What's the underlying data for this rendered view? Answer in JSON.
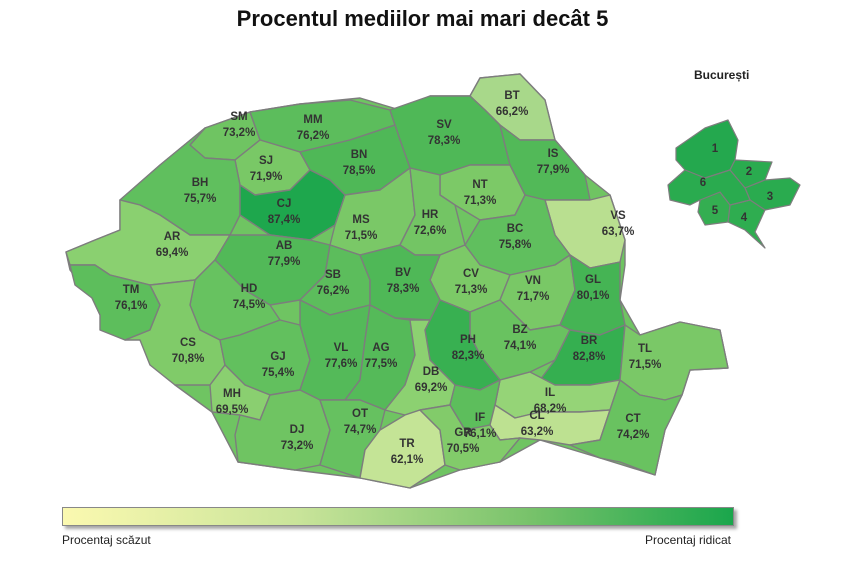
{
  "title": "Procentul mediilor mai mari decât 5",
  "inset_title": "București",
  "legend": {
    "low": "Procentaj scăzut",
    "high": "Procentaj ridicat",
    "colors": [
      "#fbf9b0",
      "#c9e49a",
      "#77c26a",
      "#1aa64c"
    ]
  },
  "counties": [
    {
      "code": "SM",
      "value": "73,2%",
      "fill": "#6fc462"
    },
    {
      "code": "MM",
      "value": "76,2%",
      "fill": "#5cbd5c"
    },
    {
      "code": "BT",
      "value": "66,2%",
      "fill": "#a8d88a"
    },
    {
      "code": "SV",
      "value": "78,3%",
      "fill": "#4fb857"
    },
    {
      "code": "SJ",
      "value": "71,9%",
      "fill": "#79c866"
    },
    {
      "code": "BN",
      "value": "78,5%",
      "fill": "#4fb857"
    },
    {
      "code": "IS",
      "value": "77,9%",
      "fill": "#52b958"
    },
    {
      "code": "BH",
      "value": "75,7%",
      "fill": "#60bf5e"
    },
    {
      "code": "CJ",
      "value": "87,4%",
      "fill": "#1ea74d"
    },
    {
      "code": "NT",
      "value": "71,3%",
      "fill": "#7cc967"
    },
    {
      "code": "MS",
      "value": "71,5%",
      "fill": "#7ac867"
    },
    {
      "code": "HR",
      "value": "72,6%",
      "fill": "#73c564"
    },
    {
      "code": "VS",
      "value": "63,7%",
      "fill": "#b9df90"
    },
    {
      "code": "AR",
      "value": "69,4%",
      "fill": "#8ad070"
    },
    {
      "code": "AB",
      "value": "77,9%",
      "fill": "#52b958"
    },
    {
      "code": "BC",
      "value": "75,8%",
      "fill": "#60bf5e"
    },
    {
      "code": "CV",
      "value": "71,3%",
      "fill": "#7cc967"
    },
    {
      "code": "SB",
      "value": "76,2%",
      "fill": "#5cbd5c"
    },
    {
      "code": "BV",
      "value": "78,3%",
      "fill": "#4fb857"
    },
    {
      "code": "VN",
      "value": "71,7%",
      "fill": "#79c866"
    },
    {
      "code": "GL",
      "value": "80,1%",
      "fill": "#45b454"
    },
    {
      "code": "TM",
      "value": "76,1%",
      "fill": "#5dbe5c"
    },
    {
      "code": "HD",
      "value": "74,5%",
      "fill": "#67c260"
    },
    {
      "code": "BZ",
      "value": "74,1%",
      "fill": "#69c260"
    },
    {
      "code": "CS",
      "value": "70,8%",
      "fill": "#80cb69"
    },
    {
      "code": "GJ",
      "value": "75,4%",
      "fill": "#62c05e"
    },
    {
      "code": "VL",
      "value": "77,6%",
      "fill": "#54ba59"
    },
    {
      "code": "AG",
      "value": "77,5%",
      "fill": "#55ba59"
    },
    {
      "code": "PH",
      "value": "82,3%",
      "fill": "#38b051"
    },
    {
      "code": "BR",
      "value": "82,8%",
      "fill": "#35af50"
    },
    {
      "code": "TL",
      "value": "71,5%",
      "fill": "#7ac867"
    },
    {
      "code": "DB",
      "value": "69,2%",
      "fill": "#8cd171"
    },
    {
      "code": "MH",
      "value": "69,5%",
      "fill": "#8acf70"
    },
    {
      "code": "IL",
      "value": "68,2%",
      "fill": "#95d477"
    },
    {
      "code": "IF",
      "value": "76,1%",
      "fill": "#5dbe5c"
    },
    {
      "code": "DJ",
      "value": "73,2%",
      "fill": "#6fc462"
    },
    {
      "code": "OT",
      "value": "74,7%",
      "fill": "#66c160"
    },
    {
      "code": "CL",
      "value": "63,2%",
      "fill": "#bde191"
    },
    {
      "code": "CT",
      "value": "74,2%",
      "fill": "#69c260"
    },
    {
      "code": "TR",
      "value": "62,1%",
      "fill": "#c4e496"
    },
    {
      "code": "GR",
      "value": "70,5%",
      "fill": "#82cb6a"
    }
  ],
  "bucharest_sectors": [
    {
      "label": "1",
      "fill": "#24a84e"
    },
    {
      "label": "2",
      "fill": "#2aab4f"
    },
    {
      "label": "3",
      "fill": "#2aab4f"
    },
    {
      "label": "4",
      "fill": "#2fad50"
    },
    {
      "label": "5",
      "fill": "#34ae51"
    },
    {
      "label": "6",
      "fill": "#2aab4f"
    }
  ]
}
